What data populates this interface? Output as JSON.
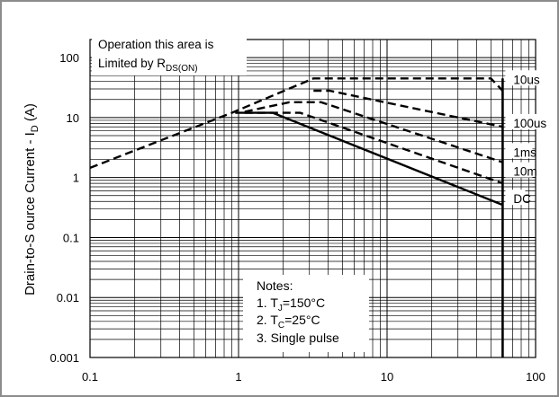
{
  "chart_data": {
    "type": "line",
    "title": "",
    "xlabel": "",
    "ylabel": "Drain-to-S ource Current - I",
    "ylabel_sub": "D",
    "ylabel_unit": " (A)",
    "x_scale": "log",
    "y_scale": "log",
    "xlim": [
      0.1,
      100
    ],
    "ylim": [
      0.001,
      200
    ],
    "x_ticks": [
      "0.1",
      "1",
      "10",
      "100"
    ],
    "y_ticks": [
      "0.001",
      "0.01",
      "0.1",
      "1",
      "10",
      "100"
    ],
    "grid": true,
    "limit_voltage": 60,
    "series": [
      {
        "name": "10us",
        "style": "dashed",
        "x": [
          0.1,
          0.9,
          3.2,
          50,
          60
        ],
        "y": [
          1.45,
          12,
          45,
          45,
          28
        ]
      },
      {
        "name": "100us",
        "style": "dashed",
        "x": [
          3.2,
          4.1,
          60
        ],
        "y": [
          28,
          28,
          7
        ]
      },
      {
        "name": "1ms",
        "style": "dashed",
        "x": [
          1.1,
          2.2,
          3.6,
          60
        ],
        "y": [
          12.5,
          18,
          18,
          1.8
        ]
      },
      {
        "name": "10m",
        "style": "dashed",
        "x": [
          1.1,
          2.6,
          60
        ],
        "y": [
          12,
          12,
          0.8
        ]
      },
      {
        "name": "DC",
        "style": "solid",
        "x": [
          0.95,
          1.7,
          60
        ],
        "y": [
          12,
          12,
          0.35
        ]
      }
    ],
    "annotations": {
      "limit_line1": "Operation this area is",
      "limit_line2": "Limited  by R",
      "limit_sub": "DS(ON)",
      "notes_title": "Notes:",
      "note1_pre": "1. T",
      "note1_sub": "J",
      "note1_post": "=150°C",
      "note2_pre": "2. T",
      "note2_sub": "C",
      "note2_post": "=25°C",
      "note3": "3. Single pulse"
    }
  }
}
